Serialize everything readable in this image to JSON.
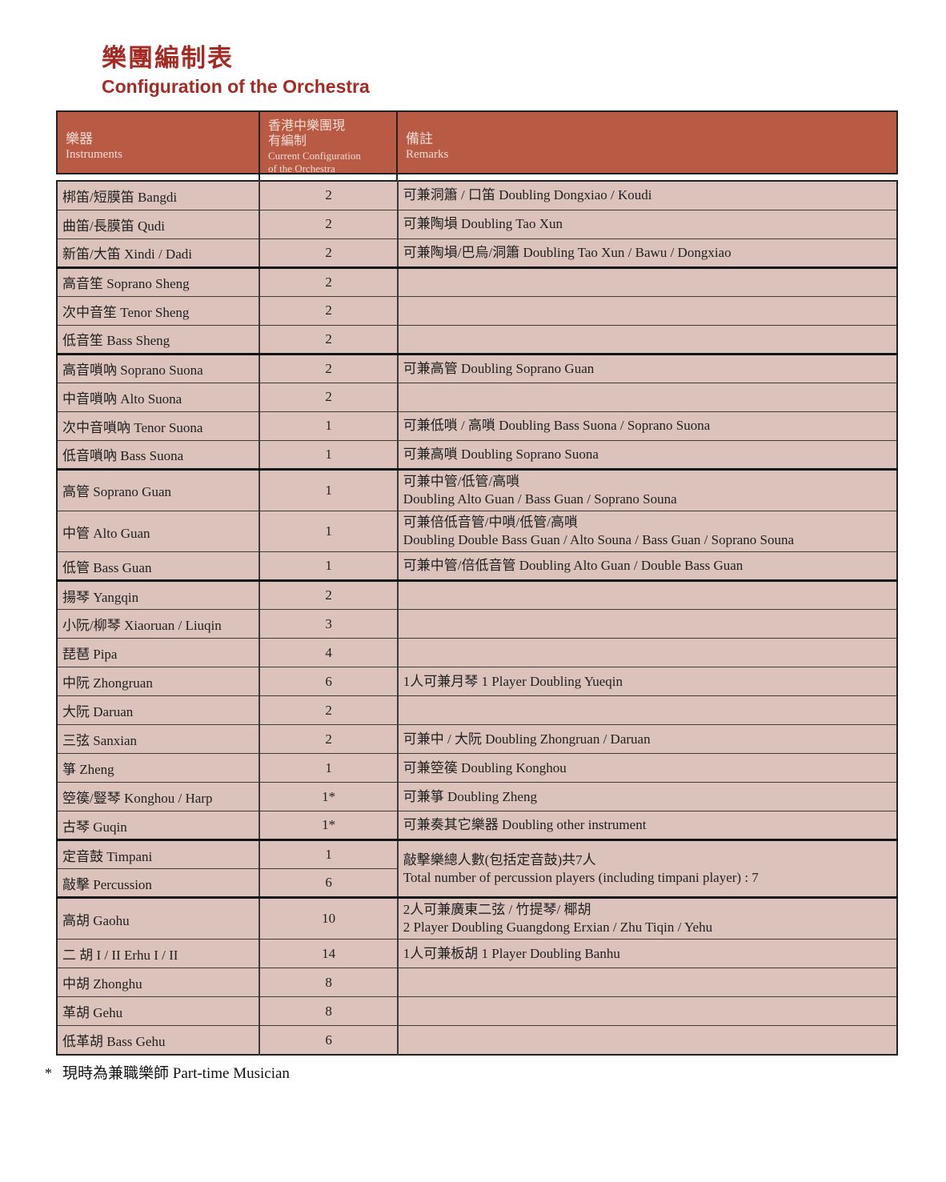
{
  "page": {
    "title_zh": "樂團編制表",
    "title_en": "Configuration of the Orchestra",
    "footnote_star": "*",
    "footnote_text": "現時為兼職樂師 Part-time Musician"
  },
  "colors": {
    "header_bg": "#b95b44",
    "title_red": "#a32b24",
    "row_bg": "#dbc3bc",
    "header_text": "#f0dcd4"
  },
  "table": {
    "header": {
      "columns": [
        {
          "zh1": "樂器",
          "en1": "Instruments"
        },
        {
          "zh1": "香港中樂團現",
          "zh2": "有編制",
          "en1": "Current Configuration",
          "en2": "of the Orchestra"
        },
        {
          "zh1": "備註",
          "en1": "Remarks"
        }
      ]
    },
    "rows": [
      {
        "instrument": "梆笛/短膜笛 Bangdi",
        "count": "2",
        "remark": [
          "可兼洞簫 / 口笛 Doubling Dongxiao / Koudi"
        ]
      },
      {
        "instrument": "曲笛/長膜笛 Qudi",
        "count": "2",
        "remark": [
          "可兼陶塤 Doubling Tao Xun"
        ]
      },
      {
        "instrument": "新笛/大笛 Xindi / Dadi",
        "count": "2",
        "remark": [
          "可兼陶塤/巴烏/洞簫 Doubling Tao Xun / Bawu / Dongxiao"
        ]
      },
      {
        "instrument": "高音笙 Soprano Sheng",
        "count": "2",
        "remark": [],
        "group_start": true
      },
      {
        "instrument": "次中音笙 Tenor Sheng",
        "count": "2",
        "remark": []
      },
      {
        "instrument": "低音笙 Bass Sheng",
        "count": "2",
        "remark": []
      },
      {
        "instrument": "高音嗩吶 Soprano Suona",
        "count": "2",
        "remark": [
          "可兼高管 Doubling Soprano Guan"
        ],
        "group_start": true
      },
      {
        "instrument": "中音嗩吶 Alto Suona",
        "count": "2",
        "remark": []
      },
      {
        "instrument": "次中音嗩吶 Tenor Suona",
        "count": "1",
        "remark": [
          "可兼低嗩 / 高嗩 Doubling Bass Suona / Soprano Suona"
        ]
      },
      {
        "instrument": "低音嗩吶 Bass Suona",
        "count": "1",
        "remark": [
          "可兼高嗩 Doubling Soprano Suona"
        ]
      },
      {
        "instrument": "高管 Soprano Guan",
        "count": "1",
        "remark": [
          "可兼中管/低管/高嗩",
          "Doubling Alto Guan / Bass Guan / Soprano Souna"
        ],
        "group_start": true
      },
      {
        "instrument": "中管 Alto Guan",
        "count": "1",
        "remark": [
          "可兼倍低音管/中嗩/低管/高嗩",
          "Doubling Double Bass Guan / Alto Souna / Bass Guan / Soprano Souna"
        ]
      },
      {
        "instrument": "低管 Bass Guan",
        "count": "1",
        "remark": [
          "可兼中管/倍低音管 Doubling Alto Guan / Double Bass Guan"
        ]
      },
      {
        "instrument": "揚琴 Yangqin",
        "count": "2",
        "remark": [],
        "group_start": true
      },
      {
        "instrument": "小阮/柳琴 Xiaoruan / Liuqin",
        "count": "3",
        "remark": []
      },
      {
        "instrument": "琵琶 Pipa",
        "count": "4",
        "remark": []
      },
      {
        "instrument": "中阮 Zhongruan",
        "count": "6",
        "remark": [
          "1人可兼月琴 1 Player Doubling Yueqin"
        ]
      },
      {
        "instrument": "大阮 Daruan",
        "count": "2",
        "remark": []
      },
      {
        "instrument": "三弦 Sanxian",
        "count": "2",
        "remark": [
          "可兼中 / 大阮 Doubling Zhongruan / Daruan"
        ]
      },
      {
        "instrument": "箏 Zheng",
        "count": "1",
        "remark": [
          "可兼箜篌 Doubling Konghou"
        ]
      },
      {
        "instrument": "箜篌/豎琴 Konghou / Harp",
        "count": "1*",
        "remark": [
          "可兼箏 Doubling Zheng"
        ]
      },
      {
        "instrument": "古琴 Guqin",
        "count": "1*",
        "remark": [
          "可兼奏其它樂器 Doubling other instrument"
        ]
      },
      {
        "instrument": "定音鼓 Timpani",
        "count": "1",
        "remark": [
          "敲擊樂總人數(包括定音鼓)共7人",
          "Total number of percussion players (including timpani player) : 7"
        ],
        "remark_rowspan": 2,
        "group_start": true
      },
      {
        "instrument": "敲擊 Percussion",
        "count": "6",
        "remark_merged_above": true
      },
      {
        "instrument": "高胡 Gaohu",
        "count": "10",
        "remark": [
          "2人可兼廣東二弦 / 竹提琴/ 椰胡",
          "2 Player Doubling Guangdong Erxian / Zhu Tiqin / Yehu"
        ],
        "group_start": true
      },
      {
        "instrument": "二 胡 I / II Erhu I / II",
        "count": "14",
        "remark": [
          "1人可兼板胡 1 Player Doubling Banhu"
        ]
      },
      {
        "instrument": "中胡 Zhonghu",
        "count": "8",
        "remark": []
      },
      {
        "instrument": "革胡 Gehu",
        "count": "8",
        "remark": []
      },
      {
        "instrument": "低革胡 Bass Gehu",
        "count": "6",
        "remark": []
      }
    ]
  }
}
